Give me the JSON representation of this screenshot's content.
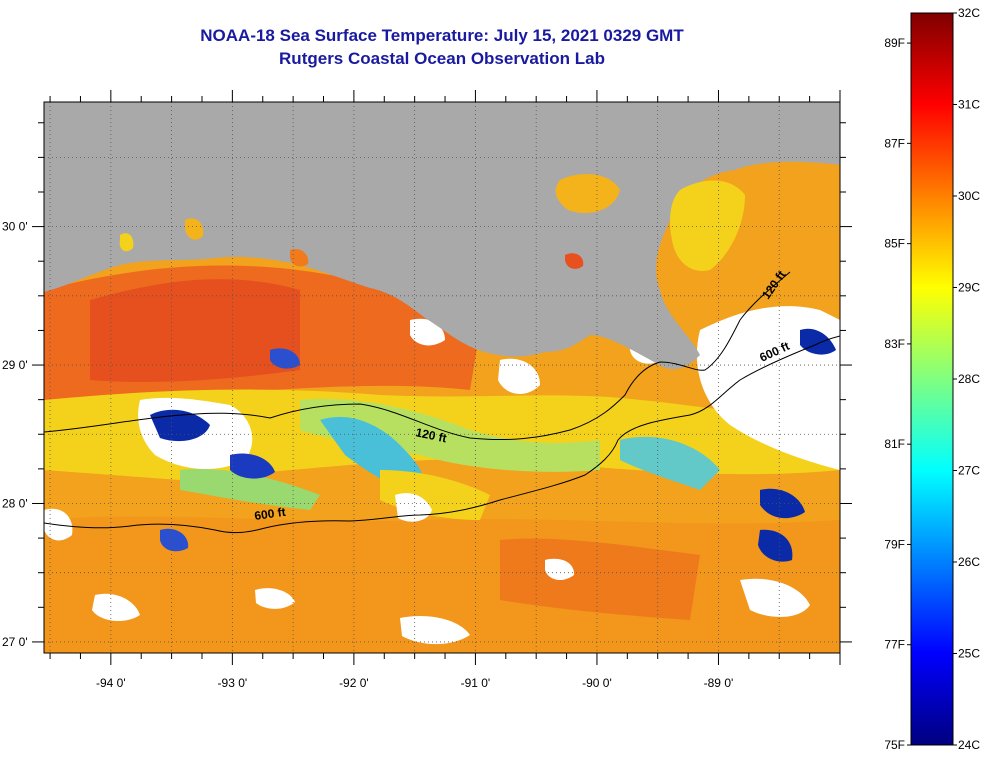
{
  "header": {
    "title": "NOAA-18 Sea Surface Temperature:  July 15, 2021 0329 GMT",
    "subtitle": "Rutgers Coastal Ocean Observation Lab"
  },
  "map": {
    "lon_range": [
      -94.55,
      -88.0
    ],
    "lat_range": [
      26.92,
      30.9
    ],
    "lon_ticks": [
      {
        "value": -94,
        "label": "-94 0'"
      },
      {
        "value": -93,
        "label": "-93 0'"
      },
      {
        "value": -92,
        "label": "-92 0'"
      },
      {
        "value": -91,
        "label": "-91 0'"
      },
      {
        "value": -90,
        "label": "-90 0'"
      },
      {
        "value": -89,
        "label": "-89 0'"
      }
    ],
    "lat_ticks": [
      {
        "value": 27,
        "label": "27 0'"
      },
      {
        "value": 28,
        "label": "28 0'"
      },
      {
        "value": 29,
        "label": "29 0'"
      },
      {
        "value": 30,
        "label": "30 0'"
      }
    ],
    "contours": [
      {
        "name": "120 ft",
        "label": "120 ft",
        "label2": "120 ft"
      },
      {
        "name": "600 ft",
        "label": "600 ft",
        "label2": "600 ft"
      }
    ],
    "colors": {
      "land": "#a9a9a9",
      "cloud": "#ffffff",
      "warm": "#f07a1c",
      "hot": "#e8441f",
      "mid": "#f4d21b",
      "cool": "#42b8e0",
      "cold": "#0a2aa8"
    }
  },
  "colorbar": {
    "celsius_range": [
      24,
      32
    ],
    "fahrenheit_range": [
      75,
      89.6
    ],
    "celsius_labels": [
      {
        "value": 32,
        "label": "32C"
      },
      {
        "value": 31,
        "label": "31C"
      },
      {
        "value": 30,
        "label": "30C"
      },
      {
        "value": 29,
        "label": "29C"
      },
      {
        "value": 28,
        "label": "28C"
      },
      {
        "value": 27,
        "label": "27C"
      },
      {
        "value": 26,
        "label": "26C"
      },
      {
        "value": 25,
        "label": "25C"
      },
      {
        "value": 24,
        "label": "24C"
      }
    ],
    "fahrenheit_labels": [
      {
        "value": 89,
        "label": "89F"
      },
      {
        "value": 87,
        "label": "87F"
      },
      {
        "value": 85,
        "label": "85F"
      },
      {
        "value": 83,
        "label": "83F"
      },
      {
        "value": 81,
        "label": "81F"
      },
      {
        "value": 79,
        "label": "79F"
      },
      {
        "value": 77,
        "label": "77F"
      },
      {
        "value": 75,
        "label": "75F"
      }
    ],
    "stops": [
      "#00007f",
      "#0000ff",
      "#0080ff",
      "#00ffff",
      "#80ff80",
      "#ffff00",
      "#ff8000",
      "#ff0000",
      "#7f0000"
    ]
  }
}
